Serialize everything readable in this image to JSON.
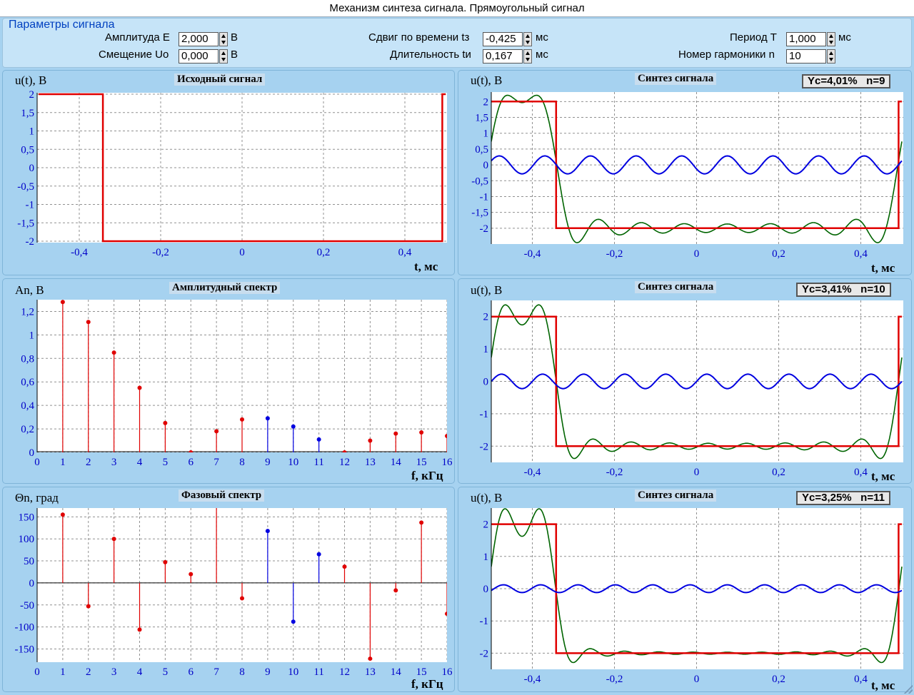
{
  "window": {
    "title": "Механизм синтеза сигнала. Прямоугольный сигнал"
  },
  "params": {
    "title": "Параметры сигнала",
    "amplitude": {
      "label": "Амплитуда  E",
      "value": "2,000",
      "unit": "В"
    },
    "offset": {
      "label": "Смещение  Uo",
      "value": "0,000",
      "unit": "В"
    },
    "shift": {
      "label": "Сдвиг по времени  tз",
      "value": "-0,425",
      "unit": "мс"
    },
    "duration": {
      "label": "Длительность  tи",
      "value": "0,167",
      "unit": "мс"
    },
    "period": {
      "label": "Период  T",
      "value": "1,000",
      "unit": "мс"
    },
    "harmonic": {
      "label": "Номер гармоники  n",
      "value": "10"
    }
  },
  "colors": {
    "signal": "#e00000",
    "harmonic": "#0000e0",
    "sum": "#006400",
    "negative_stem": "#0000e0",
    "positive_stem": "#e00000"
  },
  "panels": {
    "source": {
      "ylabel": "u(t), В",
      "title": "Исходный сигнал",
      "xlabel": "t, мс"
    },
    "amp": {
      "ylabel": "An, В",
      "title": "Амплитудный спектр",
      "xlabel": "f, кГц"
    },
    "phase": {
      "ylabel": "Θn, град",
      "title": "Фазовый спектр",
      "xlabel": "f, кГц"
    },
    "syn1": {
      "ylabel": "u(t), В",
      "title": "Синтез сигнала",
      "xlabel": "t, мс",
      "badge_y": "Yc=4,01%",
      "badge_n": "n=9"
    },
    "syn2": {
      "ylabel": "u(t), В",
      "title": "Синтез сигнала",
      "xlabel": "t, мс",
      "badge_y": "Yc=3,41%",
      "badge_n": "n=10"
    },
    "syn3": {
      "ylabel": "u(t), В",
      "title": "Синтез сигнала",
      "xlabel": "t, мс",
      "badge_y": "Yc=3,25%",
      "badge_n": "n=11"
    }
  },
  "chart_data": [
    {
      "id": "source",
      "type": "line",
      "title": "Исходный сигнал",
      "xlabel": "t, мс",
      "ylabel": "u(t), В",
      "xlim": [
        -0.5,
        0.5
      ],
      "ylim": [
        -2,
        2
      ],
      "xticks": [
        "-0,4",
        "-0,2",
        "0",
        "0,2",
        "0,4"
      ],
      "xtick_values": [
        -0.4,
        -0.2,
        0,
        0.2,
        0.4
      ],
      "yticks": [
        "2",
        "1,5",
        "1",
        "0,5",
        "0",
        "-0,5",
        "-1",
        "-1,5",
        "-2"
      ],
      "ytick_values": [
        2,
        1.5,
        1,
        0.5,
        0,
        -0.5,
        -1,
        -1.5,
        -2
      ],
      "grid": true,
      "series": [
        {
          "color": "#e00000",
          "x": [
            -0.5,
            -0.342,
            -0.342,
            0.492,
            0.492,
            0.5
          ],
          "values": [
            2,
            2,
            -2,
            -2,
            2,
            2
          ]
        }
      ]
    },
    {
      "id": "amp",
      "type": "bar",
      "title": "Амплитудный спектр",
      "xlabel": "f, кГц",
      "ylabel": "An, В",
      "xlim": [
        0,
        16
      ],
      "ylim": [
        0,
        1.3
      ],
      "xticks": [
        "0",
        "1",
        "2",
        "3",
        "4",
        "5",
        "6",
        "7",
        "8",
        "9",
        "10",
        "11",
        "12",
        "13",
        "14",
        "15",
        "16"
      ],
      "xtick_values": [
        0,
        1,
        2,
        3,
        4,
        5,
        6,
        7,
        8,
        9,
        10,
        11,
        12,
        13,
        14,
        15,
        16
      ],
      "yticks": [
        "0",
        "0,2",
        "0,4",
        "0,6",
        "0,8",
        "1",
        "1,2"
      ],
      "ytick_values": [
        0,
        0.2,
        0.4,
        0.6,
        0.8,
        1,
        1.2
      ],
      "grid": true,
      "categories": [
        1,
        2,
        3,
        4,
        5,
        6,
        7,
        8,
        9,
        10,
        11,
        12,
        13,
        14,
        15,
        16
      ],
      "values": [
        1.28,
        1.11,
        0.85,
        0.55,
        0.25,
        0.0,
        0.18,
        0.28,
        0.29,
        0.22,
        0.11,
        0.0,
        0.1,
        0.16,
        0.17,
        0.14
      ],
      "stem_colors": [
        "#e00000",
        "#e00000",
        "#e00000",
        "#e00000",
        "#e00000",
        "#e00000",
        "#e00000",
        "#e00000",
        "#0000e0",
        "#0000e0",
        "#0000e0",
        "#e00000",
        "#e00000",
        "#e00000",
        "#e00000",
        "#e00000"
      ]
    },
    {
      "id": "phase",
      "type": "bar",
      "title": "Фазовый спектр",
      "xlabel": "f, кГц",
      "ylabel": "Θn, град",
      "xlim": [
        0,
        16
      ],
      "ylim": [
        -180,
        170
      ],
      "xticks": [
        "0",
        "1",
        "2",
        "3",
        "4",
        "5",
        "6",
        "7",
        "8",
        "9",
        "10",
        "11",
        "12",
        "13",
        "14",
        "15",
        "16"
      ],
      "xtick_values": [
        0,
        1,
        2,
        3,
        4,
        5,
        6,
        7,
        8,
        9,
        10,
        11,
        12,
        13,
        14,
        15,
        16
      ],
      "yticks": [
        "150",
        "100",
        "50",
        "0",
        "-50",
        "-100",
        "-150"
      ],
      "ytick_values": [
        150,
        100,
        50,
        0,
        -50,
        -100,
        -150
      ],
      "grid": true,
      "categories": [
        1,
        2,
        3,
        4,
        5,
        6,
        7,
        8,
        9,
        10,
        11,
        12,
        13,
        14,
        15,
        16
      ],
      "values": [
        155,
        -53,
        100,
        -106,
        47,
        20,
        175,
        -35,
        118,
        -88,
        65,
        37,
        -172,
        -17,
        137,
        -70
      ],
      "stem_colors": [
        "#e00000",
        "#e00000",
        "#e00000",
        "#e00000",
        "#e00000",
        "#e00000",
        "#e00000",
        "#e00000",
        "#0000e0",
        "#0000e0",
        "#0000e0",
        "#e00000",
        "#e00000",
        "#e00000",
        "#e00000",
        "#e00000"
      ]
    },
    {
      "id": "syn1",
      "type": "line",
      "title": "Синтез сигнала",
      "xlabel": "t, мс",
      "ylabel": "u(t), В",
      "xlim": [
        -0.5,
        0.5
      ],
      "ylim": [
        -2.5,
        2.3
      ],
      "xticks": [
        "-0,4",
        "-0,2",
        "0",
        "0,2",
        "0,4"
      ],
      "xtick_values": [
        -0.4,
        -0.2,
        0,
        0.2,
        0.4
      ],
      "yticks": [
        "2",
        "1,5",
        "1",
        "0,5",
        "0",
        "-0,5",
        "-1",
        "-1,5",
        "-2"
      ],
      "ytick_values": [
        2,
        1.5,
        1,
        0.5,
        0,
        -0.5,
        -1,
        -1.5,
        -2
      ],
      "grid": true,
      "harmonic_n": 9,
      "harmonic_amplitude": 0.29
    },
    {
      "id": "syn2",
      "type": "line",
      "title": "Синтез сигнала",
      "xlabel": "t, мс",
      "ylabel": "u(t), В",
      "xlim": [
        -0.5,
        0.5
      ],
      "ylim": [
        -2.5,
        2.5
      ],
      "xticks": [
        "-0,4",
        "-0,2",
        "0",
        "0,2",
        "0,4"
      ],
      "xtick_values": [
        -0.4,
        -0.2,
        0,
        0.2,
        0.4
      ],
      "yticks": [
        "2",
        "1",
        "0",
        "-1",
        "-2"
      ],
      "ytick_values": [
        2,
        1,
        0,
        -1,
        -2
      ],
      "grid": true,
      "harmonic_n": 10,
      "harmonic_amplitude": 0.22
    },
    {
      "id": "syn3",
      "type": "line",
      "title": "Синтез сигнала",
      "xlabel": "t, мс",
      "ylabel": "u(t), В",
      "xlim": [
        -0.5,
        0.5
      ],
      "ylim": [
        -2.5,
        2.5
      ],
      "xticks": [
        "-0,4",
        "-0,2",
        "0",
        "0,2",
        "0,4"
      ],
      "xtick_values": [
        -0.4,
        -0.2,
        0,
        0.2,
        0.4
      ],
      "yticks": [
        "2",
        "1",
        "0",
        "-1",
        "-2"
      ],
      "ytick_values": [
        2,
        1,
        0,
        -1,
        -2
      ],
      "grid": true,
      "harmonic_n": 11,
      "harmonic_amplitude": 0.11
    }
  ]
}
